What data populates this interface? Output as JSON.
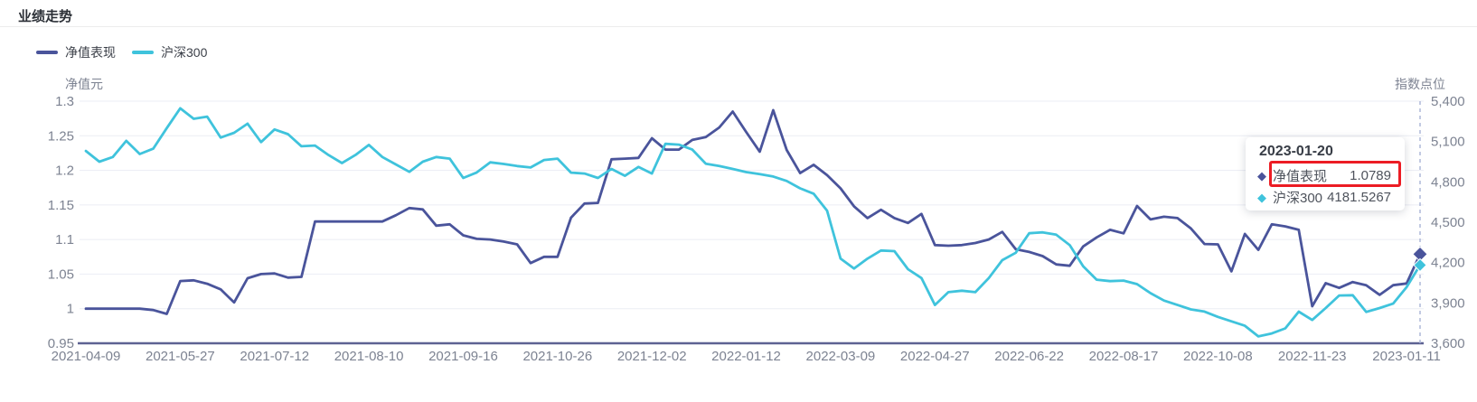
{
  "header": {
    "title": "业绩走势"
  },
  "legend": {
    "items": [
      {
        "label": "净值表现",
        "color": "#4a549b"
      },
      {
        "label": "沪深300",
        "color": "#3fc3dc"
      }
    ]
  },
  "tooltip": {
    "date": "2023-01-20",
    "rows": [
      {
        "label": "净值表现",
        "value": "1.0789",
        "color": "#4a549b",
        "highlighted": true
      },
      {
        "label": "沪深300",
        "value": "4181.5267",
        "color": "#3fc3dc",
        "highlighted": false
      }
    ],
    "highlight_color": "#ec1c24"
  },
  "chart_data": {
    "type": "line",
    "title": "业绩走势",
    "x_tick_labels": [
      "2021-04-09",
      "2021-05-27",
      "2021-07-12",
      "2021-08-10",
      "2021-09-16",
      "2021-10-26",
      "2021-12-02",
      "2022-01-12",
      "2022-03-09",
      "2022-04-27",
      "2022-06-22",
      "2022-08-17",
      "2022-10-08",
      "2022-11-23",
      "2023-01-11"
    ],
    "x_label_every_n_points": 7,
    "hover_date": "2023-01-20",
    "crosshair_index": 99,
    "grid": true,
    "legend_position": "top-left",
    "left_axis": {
      "name": "净值元",
      "min": 0.95,
      "max": 1.3,
      "ticks": [
        "1.3",
        "1.25",
        "1.2",
        "1.15",
        "1.1",
        "1.05",
        "1",
        "0.95"
      ]
    },
    "right_axis": {
      "name": "指数点位",
      "min": 3600,
      "max": 5400,
      "ticks": [
        "5,400",
        "5,100",
        "4,800",
        "4,500",
        "4,200",
        "3,900",
        "3,600"
      ]
    },
    "series": [
      {
        "name": "净值表现",
        "axis": "left",
        "color": "#4a549b",
        "values": [
          1.0,
          1.0,
          1.0,
          1.0,
          1.0,
          0.998,
          0.9925,
          1.04,
          1.041,
          1.036,
          1.028,
          1.009,
          1.044,
          1.05,
          1.051,
          1.045,
          1.046,
          1.126,
          1.126,
          1.126,
          1.126,
          1.126,
          1.126,
          1.135,
          1.1455,
          1.1435,
          1.12,
          1.122,
          1.106,
          1.101,
          1.1,
          1.097,
          1.093,
          1.066,
          1.075,
          1.075,
          1.1315,
          1.152,
          1.153,
          1.216,
          1.217,
          1.218,
          1.2465,
          1.23,
          1.23,
          1.244,
          1.248,
          1.262,
          1.285,
          1.2555,
          1.227,
          1.287,
          1.2295,
          1.196,
          1.208,
          1.193,
          1.174,
          1.148,
          1.131,
          1.143,
          1.131,
          1.124,
          1.137,
          1.092,
          1.091,
          1.092,
          1.095,
          1.1,
          1.111,
          1.086,
          1.082,
          1.076,
          1.064,
          1.062,
          1.09,
          1.103,
          1.114,
          1.109,
          1.1485,
          1.129,
          1.133,
          1.131,
          1.116,
          1.0935,
          1.093,
          1.054,
          1.108,
          1.085,
          1.122,
          1.119,
          1.114,
          1.0035,
          1.037,
          1.03,
          1.0385,
          1.034,
          1.02,
          1.034,
          1.0365,
          1.0789
        ]
      },
      {
        "name": "沪深300",
        "axis": "right",
        "color": "#3fc3dc",
        "values": [
          5030,
          4950,
          4985,
          5105,
          5007,
          5047,
          5200,
          5347,
          5269,
          5285,
          5129,
          5165,
          5233,
          5096,
          5190,
          5155,
          5065,
          5070,
          5000,
          4940,
          5000,
          5075,
          4985,
          4930,
          4875,
          4950,
          4985,
          4973,
          4829,
          4870,
          4945,
          4933,
          4918,
          4907,
          4963,
          4973,
          4869,
          4862,
          4829,
          4896,
          4845,
          4911,
          4862,
          5083,
          5077,
          5040,
          4935,
          4918,
          4896,
          4873,
          4858,
          4840,
          4807,
          4752,
          4712,
          4585,
          4229,
          4156,
          4229,
          4290,
          4285,
          4151,
          4085,
          3885,
          3980,
          3991,
          3980,
          4085,
          4218,
          4273,
          4418,
          4425,
          4407,
          4330,
          4173,
          4073,
          4062,
          4066,
          4040,
          3973,
          3918,
          3885,
          3852,
          3836,
          3796,
          3763,
          3730,
          3651,
          3673,
          3711,
          3835,
          3773,
          3862,
          3955,
          3957,
          3833,
          3862,
          3895,
          4017,
          4181.5267
        ]
      }
    ],
    "styles": {
      "grid_line_color": "#ebedf4",
      "axis_line_color": "#5d6293",
      "tick_label_color": "#7d8392",
      "crosshair_color": "#a9b3d6"
    }
  }
}
